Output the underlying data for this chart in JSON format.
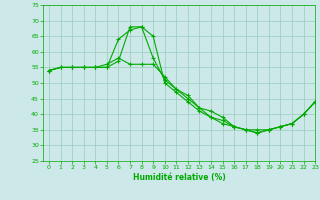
{
  "xlabel": "Humidité relative (%)",
  "bg_color": "#cce8e8",
  "grid_color": "#99ccbb",
  "line_color": "#00aa00",
  "ylim": [
    25,
    75
  ],
  "xlim": [
    -0.5,
    23
  ],
  "yticks": [
    25,
    30,
    35,
    40,
    45,
    50,
    55,
    60,
    65,
    70,
    75
  ],
  "xticks": [
    0,
    1,
    2,
    3,
    4,
    5,
    6,
    7,
    8,
    9,
    10,
    11,
    12,
    13,
    14,
    15,
    16,
    17,
    18,
    19,
    20,
    21,
    22,
    23
  ],
  "curves": [
    {
      "x": [
        0,
        1,
        2,
        3,
        4,
        5,
        6,
        7,
        8,
        9,
        10,
        11,
        12,
        13,
        14,
        15,
        16,
        17,
        18,
        19,
        20,
        21,
        22,
        23
      ],
      "y": [
        54,
        55,
        55,
        55,
        55,
        55,
        64,
        67,
        68,
        65,
        50,
        47,
        44,
        41,
        39,
        38,
        36,
        35,
        35,
        35,
        36,
        37,
        40,
        44
      ]
    },
    {
      "x": [
        0,
        1,
        2,
        3,
        4,
        5,
        6,
        7,
        8,
        9,
        10,
        11,
        12,
        13,
        14,
        15,
        16,
        17,
        18,
        19,
        20,
        21,
        22,
        23
      ],
      "y": [
        54,
        55,
        55,
        55,
        55,
        55,
        57,
        68,
        68,
        58,
        51,
        48,
        45,
        42,
        41,
        39,
        36,
        35,
        34,
        35,
        36,
        37,
        40,
        44
      ]
    },
    {
      "x": [
        0,
        1,
        2,
        3,
        4,
        5,
        6,
        7,
        8,
        9,
        10,
        11,
        12,
        13,
        14,
        15,
        16,
        17,
        18,
        19,
        20,
        21,
        22,
        23
      ],
      "y": [
        54,
        55,
        55,
        55,
        55,
        56,
        58,
        56,
        56,
        56,
        52,
        48,
        46,
        42,
        39,
        37,
        36,
        35,
        34,
        35,
        36,
        37,
        40,
        44
      ]
    }
  ]
}
